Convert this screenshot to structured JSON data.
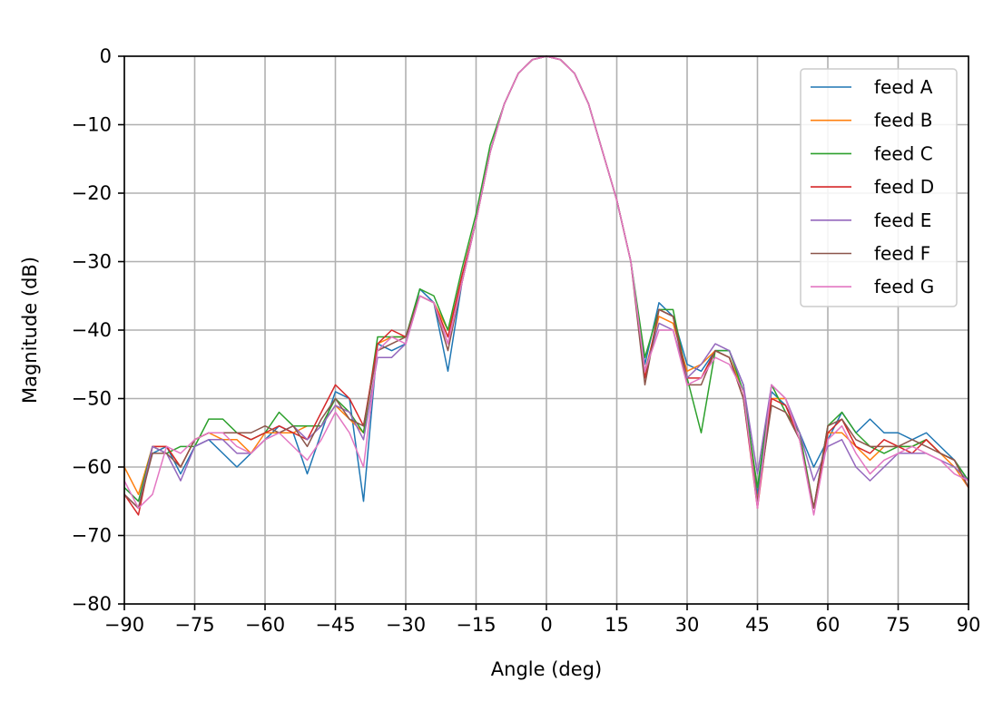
{
  "chart_data": {
    "type": "line",
    "title": "",
    "xlabel": "Angle (deg)",
    "ylabel": "Magnitude (dB)",
    "xlim": [
      -90,
      90
    ],
    "ylim": [
      -80,
      0
    ],
    "xticks": [
      -90,
      -75,
      -60,
      -45,
      -30,
      -15,
      0,
      15,
      30,
      45,
      60,
      75,
      90
    ],
    "yticks": [
      0,
      -10,
      -20,
      -30,
      -40,
      -50,
      -60,
      -70,
      -80
    ],
    "xtick_labels": [
      "−90",
      "−75",
      "−60",
      "−45",
      "−30",
      "−15",
      "0",
      "15",
      "30",
      "45",
      "60",
      "75",
      "90"
    ],
    "ytick_labels": [
      "0",
      "−10",
      "−20",
      "−30",
      "−40",
      "−50",
      "−60",
      "−70",
      "−80"
    ],
    "grid": true,
    "legend": "top-right",
    "x": [
      -90,
      -87,
      -84,
      -81,
      -78,
      -75,
      -72,
      -69,
      -66,
      -63,
      -60,
      -57,
      -54,
      -51,
      -48,
      -45,
      -42,
      -39,
      -36,
      -33,
      -30,
      -27,
      -24,
      -21,
      -18,
      -15,
      -12,
      -9,
      -6,
      -3,
      0,
      3,
      6,
      9,
      12,
      15,
      18,
      21,
      24,
      27,
      30,
      33,
      36,
      39,
      42,
      45,
      48,
      51,
      54,
      57,
      60,
      63,
      66,
      69,
      72,
      75,
      78,
      81,
      84,
      87,
      90
    ],
    "series": [
      {
        "name": "feed A",
        "color": "#1f77b4",
        "values": [
          -63,
          -65,
          -58,
          -57,
          -61,
          -57,
          -56,
          -58,
          -60,
          -58,
          -56,
          -54,
          -55,
          -61,
          -55,
          -49,
          -50,
          -65,
          -42,
          -43,
          -42,
          -34,
          -36,
          -46,
          -33,
          -24,
          -14,
          -7,
          -2.5,
          -0.5,
          0,
          -0.5,
          -2.5,
          -7,
          -14,
          -21,
          -30,
          -45,
          -36,
          -38,
          -45,
          -46,
          -43,
          -43,
          -48,
          -64,
          -49,
          -51,
          -55,
          -60,
          -56,
          -52,
          -55,
          -53,
          -55,
          -55,
          -56,
          -55,
          -57,
          -59,
          -62
        ]
      },
      {
        "name": "feed B",
        "color": "#ff7f0e",
        "values": [
          -60,
          -64,
          -57,
          -57,
          -60,
          -56,
          -55,
          -56,
          -56,
          -58,
          -55,
          -55,
          -55,
          -54,
          -54,
          -51,
          -53,
          -55,
          -42,
          -41,
          -41,
          -35,
          -36,
          -40,
          -33,
          -24,
          -14,
          -7,
          -2.5,
          -0.5,
          0,
          -0.5,
          -2.5,
          -7,
          -14,
          -21,
          -30,
          -46,
          -38,
          -39,
          -46,
          -45,
          -43,
          -44,
          -49,
          -65,
          -50,
          -50,
          -56,
          -66,
          -55,
          -55,
          -57,
          -59,
          -57,
          -57,
          -57,
          -56,
          -58,
          -60,
          -63
        ]
      },
      {
        "name": "feed C",
        "color": "#2ca02c",
        "values": [
          -63,
          -65,
          -57,
          -58,
          -57,
          -57,
          -53,
          -53,
          -55,
          -56,
          -55,
          -52,
          -54,
          -54,
          -54,
          -50,
          -52,
          -55,
          -41,
          -41,
          -41,
          -34,
          -35,
          -40,
          -31,
          -23,
          -13,
          -7,
          -2.5,
          -0.5,
          0,
          -0.5,
          -2.5,
          -7,
          -14,
          -21,
          -30,
          -44,
          -37,
          -37,
          -47,
          -55,
          -43,
          -43,
          -49,
          -63,
          -48,
          -52,
          -55,
          -66,
          -54,
          -52,
          -55,
          -57,
          -58,
          -57,
          -57,
          -56,
          -58,
          -59,
          -62
        ]
      },
      {
        "name": "feed D",
        "color": "#d62728",
        "values": [
          -64,
          -67,
          -57,
          -57,
          -60,
          -56,
          -55,
          -55,
          -55,
          -56,
          -55,
          -54,
          -55,
          -56,
          -52,
          -48,
          -50,
          -54,
          -42,
          -40,
          -41,
          -35,
          -36,
          -41,
          -32,
          -24,
          -14,
          -7,
          -2.5,
          -0.5,
          0,
          -0.5,
          -2.5,
          -7,
          -14,
          -21,
          -30,
          -47,
          -37,
          -38,
          -47,
          -47,
          -43,
          -44,
          -50,
          -66,
          -50,
          -51,
          -56,
          -66,
          -55,
          -53,
          -57,
          -58,
          -56,
          -57,
          -58,
          -56,
          -58,
          -59,
          -63
        ]
      },
      {
        "name": "feed E",
        "color": "#9467bd",
        "values": [
          -64,
          -66,
          -57,
          -58,
          -62,
          -57,
          -56,
          -56,
          -58,
          -58,
          -56,
          -55,
          -54,
          -56,
          -54,
          -51,
          -52,
          -56,
          -44,
          -44,
          -42,
          -35,
          -36,
          -42,
          -33,
          -24,
          -14,
          -7,
          -2.5,
          -0.5,
          0,
          -0.5,
          -2.5,
          -7,
          -14,
          -21,
          -30,
          -46,
          -39,
          -40,
          -47,
          -45,
          -42,
          -43,
          -48,
          -61,
          -48,
          -50,
          -55,
          -62,
          -57,
          -56,
          -60,
          -62,
          -60,
          -58,
          -58,
          -58,
          -59,
          -60,
          -62
        ]
      },
      {
        "name": "feed F",
        "color": "#8c564b",
        "values": [
          -64,
          -66,
          -58,
          -58,
          -60,
          -56,
          -55,
          -55,
          -55,
          -55,
          -54,
          -55,
          -54,
          -57,
          -53,
          -50,
          -53,
          -54,
          -43,
          -42,
          -41,
          -35,
          -36,
          -43,
          -33,
          -24,
          -14,
          -7,
          -2.5,
          -0.5,
          0,
          -0.5,
          -2.5,
          -7,
          -14,
          -21,
          -30,
          -48,
          -37,
          -38,
          -48,
          -48,
          -43,
          -44,
          -50,
          -65,
          -51,
          -52,
          -56,
          -66,
          -54,
          -53,
          -56,
          -57,
          -57,
          -57,
          -56,
          -57,
          -58,
          -59,
          -63
        ]
      },
      {
        "name": "feed G",
        "color": "#e377c2",
        "values": [
          -62,
          -66,
          -64,
          -57,
          -58,
          -56,
          -55,
          -55,
          -57,
          -58,
          -56,
          -55,
          -57,
          -59,
          -56,
          -52,
          -55,
          -60,
          -43,
          -41,
          -42,
          -35,
          -36,
          -42,
          -33,
          -24,
          -14,
          -7,
          -2.5,
          -0.5,
          0,
          -0.5,
          -2.5,
          -7,
          -14,
          -21,
          -30,
          -46,
          -40,
          -40,
          -48,
          -47,
          -44,
          -45,
          -49,
          -66,
          -48,
          -50,
          -56,
          -67,
          -56,
          -54,
          -58,
          -61,
          -59,
          -58,
          -57,
          -58,
          -59,
          -61,
          -62
        ]
      }
    ]
  }
}
